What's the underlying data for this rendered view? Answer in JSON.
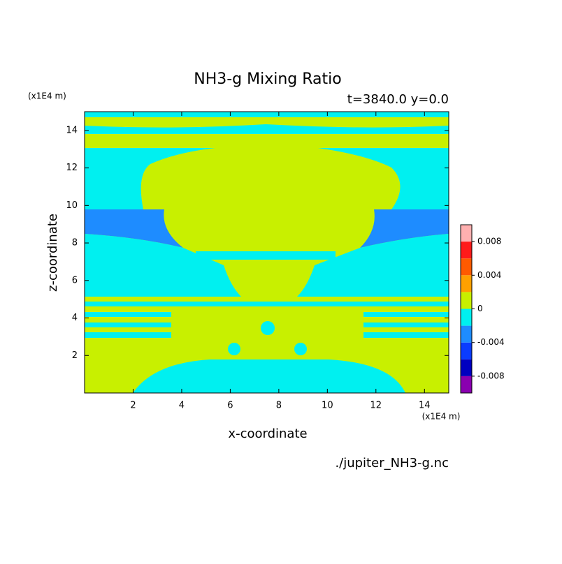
{
  "chart_data": {
    "type": "contour",
    "title": "NH3-g Mixing Ratio",
    "subtitle": "t=3840.0 y=0.0",
    "x_label": "x-coordinate",
    "y_label": "z-coordinate",
    "x_unit": "(x1E4 m)",
    "y_unit": "(x1E4 m)",
    "source": "./jupiter_NH3-g.nc",
    "xlim": [
      0,
      15
    ],
    "ylim": [
      0,
      15
    ],
    "xticks": [
      2,
      4,
      6,
      8,
      10,
      12,
      14
    ],
    "yticks": [
      2,
      4,
      6,
      8,
      10,
      12,
      14
    ],
    "colorbar": {
      "range": [
        -0.01,
        0.01
      ],
      "ticks": [
        -0.008,
        -0.004,
        0,
        0.004,
        0.008
      ],
      "colors": [
        "#8a00b0",
        "#0000c0",
        "#0a3cff",
        "#1e8cff",
        "#00f0f0",
        "#c8f000",
        "#ffa000",
        "#ff5a00",
        "#ff1a1a",
        "#ffb0b0"
      ]
    }
  }
}
